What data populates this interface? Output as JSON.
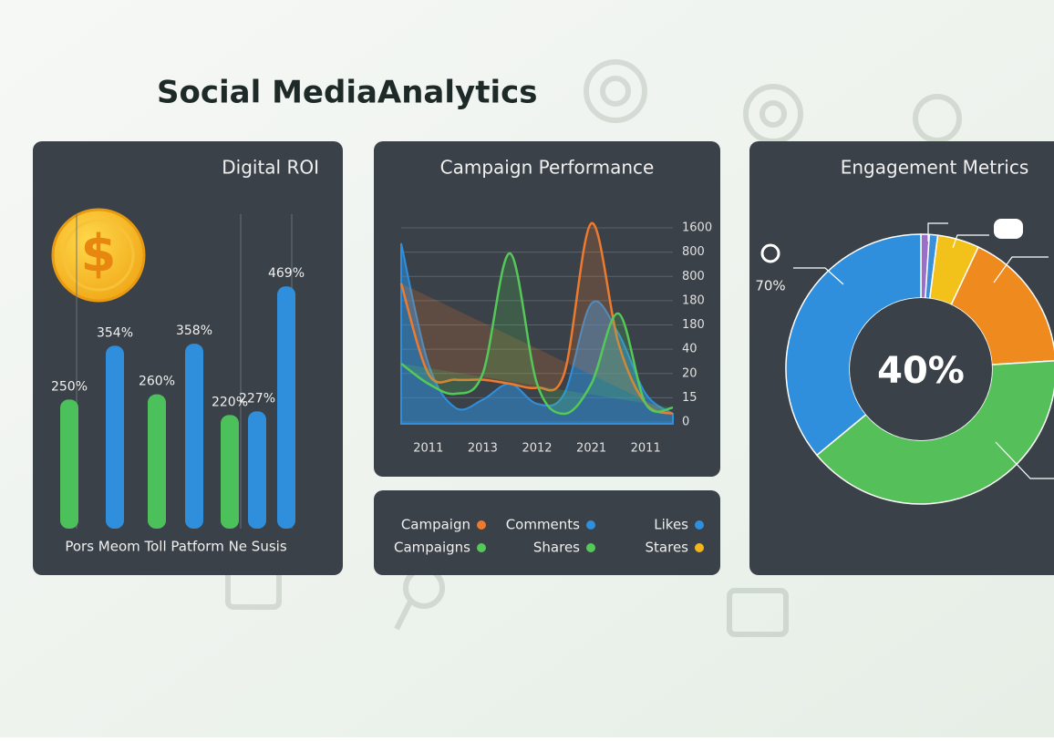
{
  "title": "Social MediaAnalytics",
  "chart_data": [
    {
      "type": "bar",
      "title": "Digital ROI",
      "xlabel": "Pors Meom Toll Patform Ne Susis",
      "values": [
        250,
        354,
        260,
        358,
        220,
        227,
        469
      ],
      "value_labels": [
        "250%",
        "354%",
        "260%",
        "358%",
        "220%",
        "227%",
        "469%"
      ],
      "colors": [
        "#4cc05a",
        "#2f8fdc",
        "#4cc05a",
        "#2f8fdc",
        "#4cc05a",
        "#2f8fdc",
        "#2f8fdc"
      ],
      "ylim": [
        0,
        600
      ]
    },
    {
      "type": "line",
      "title": "Campaign Performance",
      "categories": [
        null,
        "2011",
        null,
        "2013",
        null,
        "2012",
        null,
        "2021",
        null,
        "2011",
        null
      ],
      "y_labels": [
        "1600",
        "800",
        "800",
        "180",
        "180",
        "40",
        "20",
        "15",
        "0"
      ],
      "ylim": [
        0,
        100
      ],
      "series": [
        {
          "color": "#2f8fdc",
          "area": true,
          "values": [
            90,
            30,
            8,
            12,
            20,
            10,
            15,
            60,
            45,
            15,
            5
          ]
        },
        {
          "color": "#ee7a2e",
          "area": false,
          "values": [
            70,
            25,
            22,
            22,
            20,
            18,
            25,
            100,
            40,
            10,
            5
          ]
        },
        {
          "color": "#55c85a",
          "area": false,
          "values": [
            30,
            20,
            15,
            25,
            85,
            20,
            5,
            20,
            55,
            10,
            8
          ]
        }
      ],
      "legend": [
        {
          "name": "Campaign",
          "color": "#ee7a2e"
        },
        {
          "name": "Comments",
          "color": "#2f8fdc"
        },
        {
          "name": "Likes",
          "color": "#2f8fdc"
        },
        {
          "name": "Campaigns",
          "color": "#55c85a"
        },
        {
          "name": "Shares",
          "color": "#55c85a"
        },
        {
          "name": "Stares",
          "color": "#f2b61b"
        }
      ]
    },
    {
      "type": "pie",
      "title": "Engagement Metrics",
      "values": [
        1,
        1,
        5,
        17,
        40,
        36
      ],
      "colors": [
        "#9b6fc7",
        "#3b8fd9",
        "#f2c21b",
        "#ee8a1e",
        "#55c05a",
        "#2f8fdc"
      ],
      "center_label": "40%",
      "annotation": "70%"
    }
  ]
}
